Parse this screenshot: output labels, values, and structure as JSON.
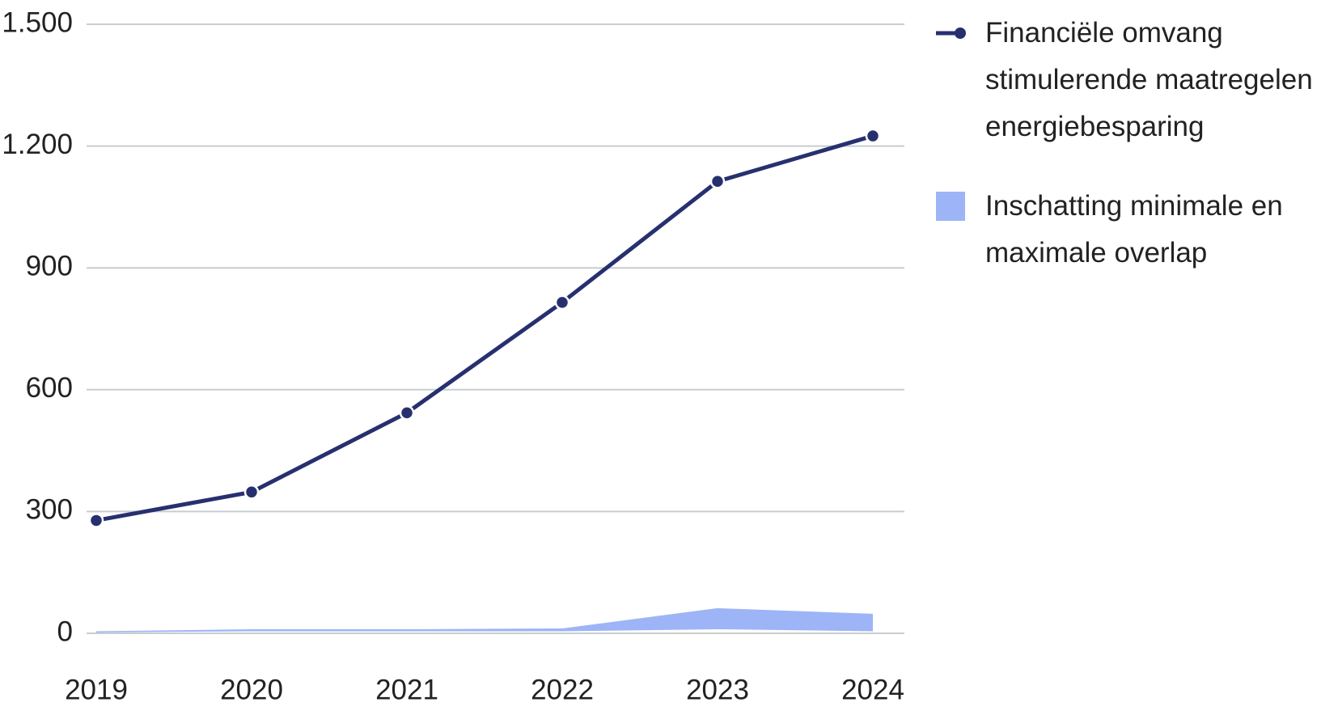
{
  "chart_data": {
    "type": "line",
    "categories": [
      "2019",
      "2020",
      "2021",
      "2022",
      "2023",
      "2024"
    ],
    "series": [
      {
        "name": "Financiële omvang stimulerende maatregelen energiebesparing",
        "color": "#27306f",
        "values": [
          278,
          348,
          543,
          815,
          1113,
          1225
        ]
      },
      {
        "name": "Inschatting minimale en maximale overlap",
        "color": "#9db4f7",
        "lower": [
          2,
          5,
          5,
          5,
          10,
          5
        ],
        "upper": [
          5,
          10,
          10,
          12,
          62,
          48
        ]
      }
    ],
    "ylim": [
      0,
      1500
    ],
    "yticks": [
      0,
      300,
      600,
      900,
      {
        "value": 1200,
        "label": "1.200"
      },
      {
        "value": 1500,
        "label": "1.500"
      }
    ],
    "grid": true,
    "legend": "right"
  }
}
